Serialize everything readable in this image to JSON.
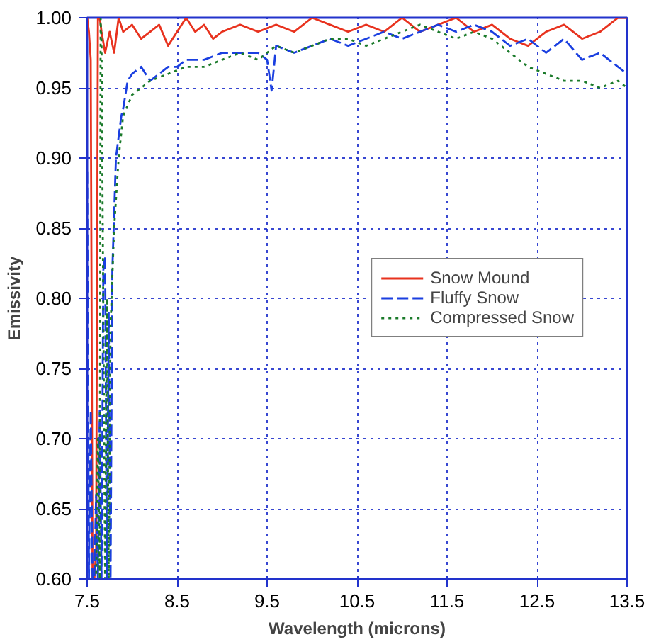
{
  "chart_data": {
    "type": "line",
    "xlabel": "Wavelength (microns)",
    "ylabel": "Emissivity",
    "xlim": [
      7.5,
      13.5
    ],
    "ylim": [
      0.6,
      1.0
    ],
    "xticks": [
      7.5,
      8.5,
      9.5,
      10.5,
      11.5,
      12.5,
      13.5
    ],
    "yticks": [
      {
        "value": 0.6,
        "label": "0.60"
      },
      0.65,
      {
        "value": 0.7,
        "label": "0.70"
      },
      0.75,
      {
        "value": 0.8,
        "label": "0.80"
      },
      0.85,
      {
        "value": 0.9,
        "label": "0.90"
      },
      0.95,
      {
        "value": 1.0,
        "label": "1.00"
      }
    ],
    "grid": true,
    "legend": "right",
    "marker": "none",
    "series": [
      {
        "name": "Snow Mound",
        "color": "#e8321e",
        "line_style": "solid",
        "x": [
          7.5,
          7.52,
          7.54,
          7.56,
          7.57,
          7.58,
          7.6,
          7.62,
          7.64,
          7.66,
          7.7,
          7.75,
          7.8,
          7.85,
          7.9,
          8.0,
          8.1,
          8.2,
          8.3,
          8.4,
          8.5,
          8.6,
          8.7,
          8.8,
          8.9,
          9.0,
          9.2,
          9.4,
          9.6,
          9.8,
          10.0,
          10.2,
          10.4,
          10.6,
          10.8,
          11.0,
          11.2,
          11.4,
          11.6,
          11.8,
          12.0,
          12.2,
          12.4,
          12.6,
          12.8,
          13.0,
          13.2,
          13.4,
          13.5
        ],
        "values": [
          1.0,
          0.99,
          0.97,
          0.6,
          0.6,
          0.6,
          0.62,
          1.0,
          1.0,
          0.99,
          0.975,
          0.99,
          0.975,
          1.0,
          0.99,
          0.995,
          0.985,
          0.99,
          0.995,
          0.98,
          0.99,
          1.0,
          0.99,
          0.995,
          0.985,
          0.99,
          0.995,
          0.99,
          0.995,
          0.99,
          1.0,
          0.995,
          0.99,
          0.995,
          0.99,
          1.0,
          0.99,
          0.995,
          1.0,
          0.99,
          0.995,
          0.985,
          0.98,
          0.99,
          0.995,
          0.985,
          0.99,
          1.0,
          1.0
        ]
      },
      {
        "name": "Fluffy Snow",
        "color": "#1a3fe0",
        "line_style": "dashed",
        "x": [
          7.5,
          7.52,
          7.54,
          7.56,
          7.58,
          7.6,
          7.62,
          7.64,
          7.66,
          7.68,
          7.7,
          7.72,
          7.74,
          7.76,
          7.78,
          7.8,
          7.82,
          7.84,
          7.86,
          7.88,
          7.9,
          7.95,
          8.0,
          8.1,
          8.2,
          8.3,
          8.4,
          8.5,
          8.6,
          8.8,
          9.0,
          9.2,
          9.4,
          9.5,
          9.55,
          9.6,
          9.8,
          10.0,
          10.2,
          10.4,
          10.6,
          10.8,
          11.0,
          11.2,
          11.4,
          11.6,
          11.8,
          12.0,
          12.2,
          12.4,
          12.6,
          12.8,
          13.0,
          13.2,
          13.4,
          13.5
        ],
        "values": [
          0.89,
          0.6,
          0.72,
          0.6,
          0.6,
          0.66,
          0.6,
          0.72,
          0.6,
          0.82,
          0.83,
          0.6,
          0.79,
          0.6,
          0.82,
          0.86,
          0.9,
          0.91,
          0.92,
          0.93,
          0.935,
          0.955,
          0.96,
          0.965,
          0.955,
          0.96,
          0.965,
          0.965,
          0.97,
          0.97,
          0.975,
          0.975,
          0.975,
          0.97,
          0.948,
          0.98,
          0.975,
          0.98,
          0.985,
          0.98,
          0.985,
          0.99,
          0.985,
          0.99,
          0.995,
          0.99,
          0.995,
          0.99,
          0.98,
          0.985,
          0.975,
          0.985,
          0.97,
          0.975,
          0.965,
          0.96
        ]
      },
      {
        "name": "Compressed Snow",
        "color": "#1a7a2a",
        "line_style": "dotted",
        "x": [
          7.5,
          7.55,
          7.6,
          7.62,
          7.64,
          7.65,
          7.66,
          7.7,
          7.72,
          7.74,
          7.76,
          7.8,
          7.85,
          7.9,
          8.0,
          8.1,
          8.2,
          8.4,
          8.6,
          8.8,
          9.0,
          9.2,
          9.4,
          9.6,
          9.8,
          10.0,
          10.2,
          10.4,
          10.6,
          10.8,
          11.0,
          11.2,
          11.4,
          11.6,
          11.8,
          12.0,
          12.2,
          12.4,
          12.6,
          12.8,
          13.0,
          13.2,
          13.4,
          13.5
        ],
        "values": [
          0.6,
          0.6,
          0.6,
          0.7,
          0.6,
          1.0,
          0.98,
          0.6,
          0.8,
          0.6,
          0.78,
          0.85,
          0.9,
          0.93,
          0.945,
          0.95,
          0.955,
          0.96,
          0.965,
          0.965,
          0.97,
          0.975,
          0.97,
          0.98,
          0.975,
          0.98,
          0.985,
          0.985,
          0.98,
          0.985,
          0.99,
          0.995,
          0.99,
          0.985,
          0.99,
          0.985,
          0.975,
          0.965,
          0.96,
          0.955,
          0.955,
          0.95,
          0.955,
          0.95
        ]
      }
    ]
  }
}
